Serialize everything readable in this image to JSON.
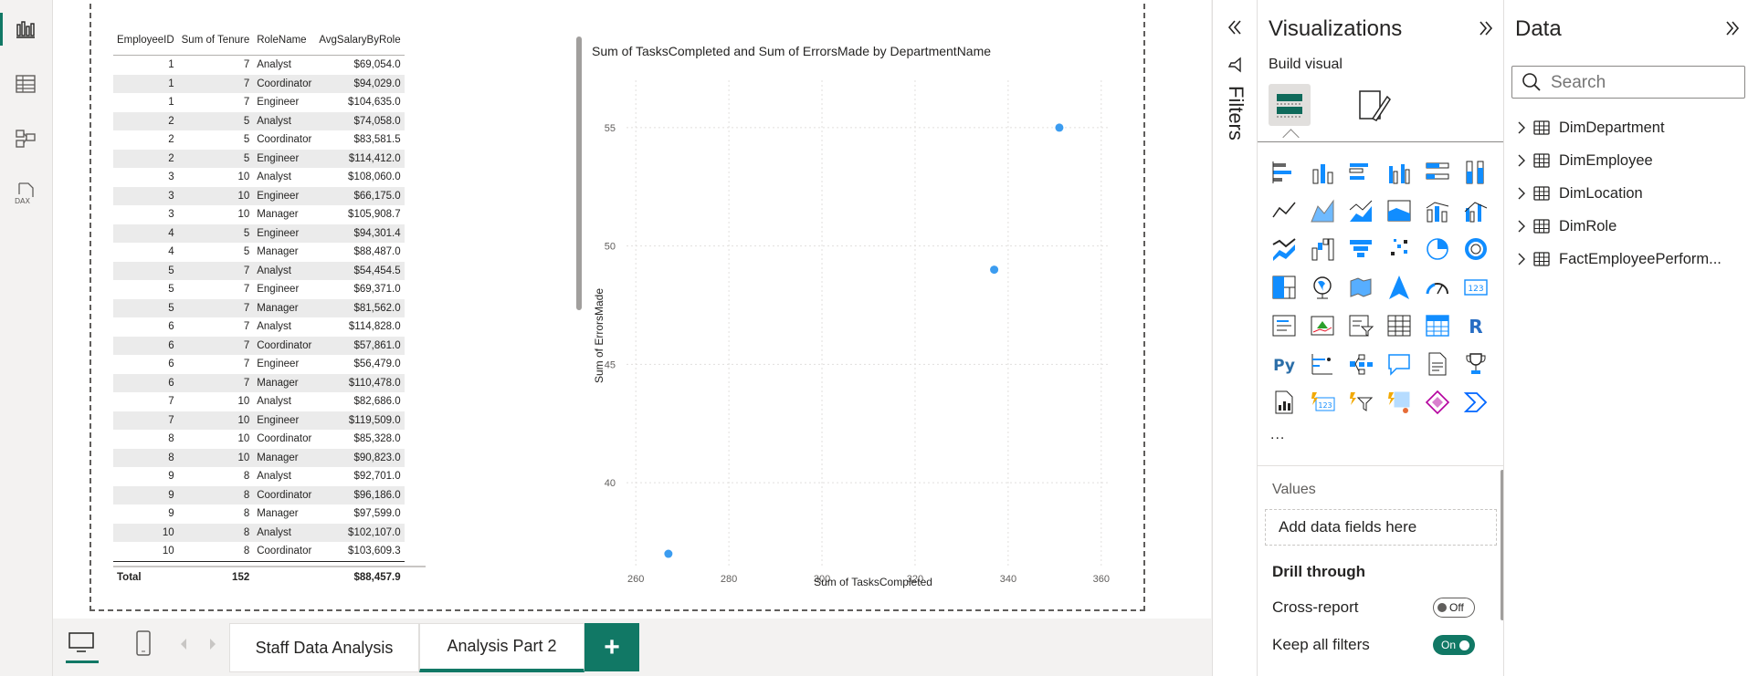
{
  "table": {
    "headers": [
      "EmployeeID",
      "Sum of Tenure",
      "RoleName",
      "AvgSalaryByRole"
    ],
    "rows": [
      [
        "1",
        "7",
        "Analyst",
        "$69,054.0"
      ],
      [
        "1",
        "7",
        "Coordinator",
        "$94,029.0"
      ],
      [
        "1",
        "7",
        "Engineer",
        "$104,635.0"
      ],
      [
        "2",
        "5",
        "Analyst",
        "$74,058.0"
      ],
      [
        "2",
        "5",
        "Coordinator",
        "$83,581.5"
      ],
      [
        "2",
        "5",
        "Engineer",
        "$114,412.0"
      ],
      [
        "3",
        "10",
        "Analyst",
        "$108,060.0"
      ],
      [
        "3",
        "10",
        "Engineer",
        "$66,175.0"
      ],
      [
        "3",
        "10",
        "Manager",
        "$105,908.7"
      ],
      [
        "4",
        "5",
        "Engineer",
        "$94,301.4"
      ],
      [
        "4",
        "5",
        "Manager",
        "$88,487.0"
      ],
      [
        "5",
        "7",
        "Analyst",
        "$54,454.5"
      ],
      [
        "5",
        "7",
        "Engineer",
        "$69,371.0"
      ],
      [
        "5",
        "7",
        "Manager",
        "$81,562.0"
      ],
      [
        "6",
        "7",
        "Analyst",
        "$114,828.0"
      ],
      [
        "6",
        "7",
        "Coordinator",
        "$57,861.0"
      ],
      [
        "6",
        "7",
        "Engineer",
        "$56,479.0"
      ],
      [
        "6",
        "7",
        "Manager",
        "$110,478.0"
      ],
      [
        "7",
        "10",
        "Analyst",
        "$82,686.0"
      ],
      [
        "7",
        "10",
        "Engineer",
        "$119,509.0"
      ],
      [
        "8",
        "10",
        "Coordinator",
        "$85,328.0"
      ],
      [
        "8",
        "10",
        "Manager",
        "$90,823.0"
      ],
      [
        "9",
        "8",
        "Analyst",
        "$92,701.0"
      ],
      [
        "9",
        "8",
        "Coordinator",
        "$96,186.0"
      ],
      [
        "9",
        "8",
        "Manager",
        "$97,599.0"
      ],
      [
        "10",
        "8",
        "Analyst",
        "$102,107.0"
      ],
      [
        "10",
        "8",
        "Coordinator",
        "$103,609.3"
      ]
    ],
    "total": {
      "label": "Total",
      "tenure": "152",
      "salary": "$88,457.9"
    }
  },
  "chart_data": {
    "type": "scatter",
    "title": "Sum of TasksCompleted and Sum of ErrorsMade by DepartmentName",
    "xlabel": "Sum of TasksCompleted",
    "ylabel": "Sum of ErrorsMade",
    "xlim": [
      258,
      362
    ],
    "ylim": [
      36.5,
      57
    ],
    "xticks": [
      260,
      280,
      300,
      320,
      340,
      360
    ],
    "yticks": [
      40,
      45,
      50,
      55
    ],
    "grid": true,
    "point_color": "#3b9cf0",
    "points": [
      {
        "x": 267,
        "y": 37
      },
      {
        "x": 337,
        "y": 49
      },
      {
        "x": 351,
        "y": 55
      }
    ]
  },
  "filters": {
    "label": "Filters"
  },
  "visualizations": {
    "title": "Visualizations",
    "build_label": "Build visual",
    "more_label": "...",
    "values_label": "Values",
    "add_fields": "Add data fields here",
    "drill_label": "Drill through",
    "cross_report_label": "Cross-report",
    "cross_report_state": "Off",
    "keep_filters_label": "Keep all filters",
    "keep_filters_state": "On",
    "accent": "#117865"
  },
  "data_pane": {
    "title": "Data",
    "search_placeholder": "Search",
    "tables": [
      "DimDepartment",
      "DimEmployee",
      "DimLocation",
      "DimRole",
      "FactEmployeePerform..."
    ]
  },
  "tabs": {
    "items": [
      "Staff Data Analysis",
      "Analysis Part 2"
    ],
    "active": 1,
    "add_label": "+"
  }
}
